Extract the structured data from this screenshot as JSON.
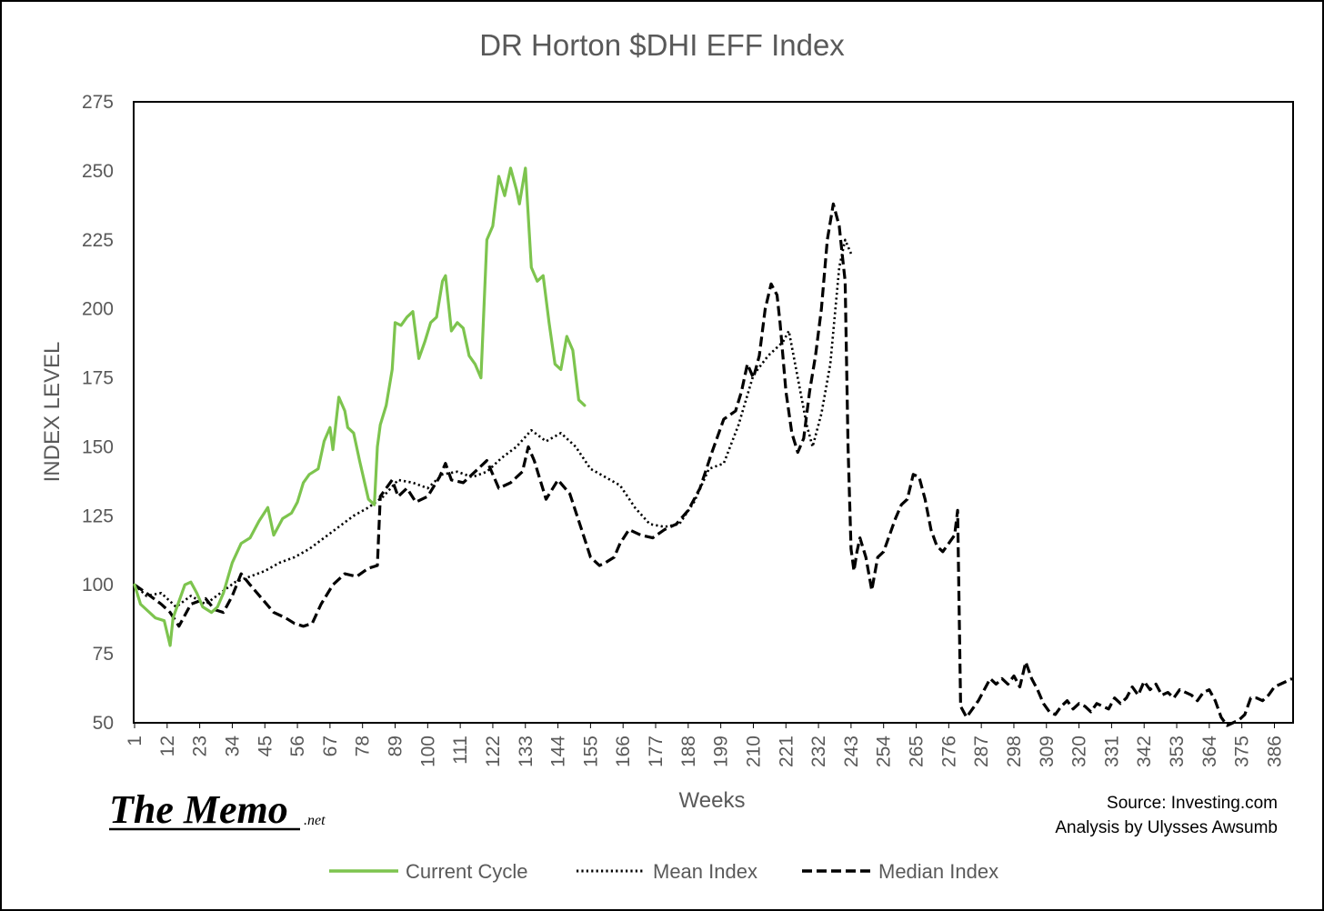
{
  "chart_data": {
    "type": "line",
    "title": "DR Horton $DHI EFF Index",
    "xlabel": "Weeks",
    "ylabel": "INDEX LEVEL",
    "xlim": [
      1,
      392
    ],
    "ylim": [
      50,
      275
    ],
    "y_ticks": [
      50,
      75,
      100,
      125,
      150,
      175,
      200,
      225,
      250,
      275
    ],
    "x_ticks": [
      1,
      12,
      23,
      34,
      45,
      56,
      67,
      78,
      89,
      100,
      111,
      122,
      133,
      144,
      155,
      166,
      177,
      188,
      199,
      210,
      221,
      232,
      243,
      254,
      265,
      276,
      287,
      298,
      309,
      320,
      331,
      342,
      353,
      364,
      375,
      386
    ],
    "grid": false,
    "legend": "bottom",
    "series": [
      {
        "name": "Current Cycle",
        "color": "#7DC44E",
        "style": "solid",
        "x": [
          1,
          3,
          5,
          8,
          11,
          13,
          14,
          16,
          18,
          20,
          22,
          24,
          27,
          29,
          31,
          34,
          37,
          40,
          43,
          46,
          48,
          51,
          54,
          56,
          58,
          60,
          63,
          65,
          67,
          68,
          70,
          72,
          73,
          75,
          77,
          80,
          82,
          83,
          84,
          86,
          88,
          89,
          91,
          93,
          95,
          97,
          99,
          101,
          103,
          105,
          106,
          108,
          110,
          112,
          114,
          116,
          118,
          120,
          122,
          124,
          126,
          128,
          130,
          131,
          133,
          135,
          137,
          139,
          141,
          143,
          145,
          147,
          149,
          151,
          153
        ],
        "y": [
          100,
          93,
          91,
          88,
          87,
          78,
          88,
          94,
          100,
          101,
          97,
          92,
          90,
          92,
          97,
          108,
          115,
          117,
          123,
          128,
          118,
          124,
          126,
          130,
          137,
          140,
          142,
          152,
          157,
          149,
          168,
          163,
          157,
          155,
          145,
          131,
          129,
          150,
          158,
          165,
          178,
          195,
          194,
          197,
          199,
          182,
          188,
          195,
          197,
          210,
          212,
          192,
          195,
          193,
          183,
          180,
          175,
          225,
          230,
          248,
          241,
          251,
          243,
          238,
          251,
          215,
          210,
          212,
          195,
          180,
          178,
          190,
          185,
          167,
          165
        ]
      },
      {
        "name": "Mean Index",
        "color": "#000000",
        "style": "dotted",
        "x": [
          1,
          5,
          10,
          15,
          20,
          25,
          30,
          35,
          40,
          45,
          50,
          55,
          60,
          65,
          70,
          75,
          80,
          85,
          90,
          95,
          100,
          105,
          110,
          115,
          120,
          125,
          130,
          135,
          140,
          145,
          150,
          155,
          160,
          165,
          170,
          175,
          180,
          185,
          190,
          195,
          200,
          205,
          210,
          215,
          220,
          222,
          225,
          228,
          230,
          233,
          236,
          239,
          241,
          243
        ],
        "y": [
          100,
          96,
          97,
          92,
          96,
          93,
          97,
          101,
          103,
          105,
          108,
          110,
          113,
          117,
          121,
          125,
          128,
          132,
          138,
          137,
          135,
          140,
          141,
          139,
          141,
          146,
          150,
          156,
          152,
          155,
          150,
          142,
          139,
          136,
          128,
          122,
          121,
          122,
          130,
          142,
          144,
          158,
          176,
          183,
          188,
          192,
          175,
          158,
          150,
          162,
          180,
          215,
          225,
          220
        ]
      },
      {
        "name": "Median Index",
        "color": "#000000",
        "style": "dashed",
        "x": [
          1,
          5,
          10,
          13,
          16,
          20,
          25,
          28,
          31,
          34,
          37,
          40,
          44,
          48,
          52,
          55,
          58,
          61,
          64,
          68,
          72,
          76,
          80,
          83,
          84,
          86,
          88,
          90,
          93,
          96,
          100,
          104,
          106,
          108,
          112,
          116,
          120,
          124,
          128,
          132,
          134,
          136,
          140,
          144,
          148,
          152,
          155,
          158,
          160,
          163,
          165,
          168,
          172,
          176,
          180,
          184,
          188,
          192,
          196,
          200,
          204,
          206,
          208,
          210,
          212,
          214,
          216,
          218,
          219,
          221,
          223,
          225,
          227,
          229,
          231,
          233,
          235,
          237,
          239,
          240,
          241,
          242,
          243,
          244,
          245,
          246,
          248,
          250,
          252,
          254,
          256,
          258,
          260,
          262,
          264,
          266,
          268,
          270,
          272,
          274,
          276,
          278,
          279,
          280,
          282,
          284,
          286,
          288,
          290,
          292,
          294,
          296,
          298,
          300,
          302,
          304,
          306,
          308,
          310,
          312,
          314,
          316,
          318,
          320,
          322,
          324,
          326,
          328,
          330,
          332,
          334,
          336,
          338,
          340,
          342,
          344,
          346,
          348,
          350,
          352,
          354,
          356,
          358,
          360,
          362,
          364,
          366,
          368,
          370,
          372,
          374,
          376,
          378,
          380,
          382,
          384,
          386,
          388,
          390,
          392
        ],
        "y": [
          100,
          97,
          93,
          90,
          85,
          93,
          95,
          91,
          90,
          96,
          104,
          100,
          95,
          90,
          88,
          86,
          85,
          86,
          93,
          100,
          104,
          103,
          106,
          107,
          132,
          135,
          138,
          132,
          135,
          130,
          132,
          139,
          144,
          138,
          137,
          141,
          145,
          135,
          137,
          141,
          150,
          145,
          131,
          138,
          133,
          120,
          110,
          107,
          108,
          110,
          115,
          120,
          118,
          117,
          120,
          122,
          127,
          135,
          148,
          160,
          163,
          170,
          180,
          175,
          183,
          200,
          209,
          205,
          195,
          170,
          155,
          148,
          153,
          170,
          183,
          200,
          225,
          238,
          230,
          220,
          210,
          150,
          113,
          105,
          112,
          117,
          110,
          98,
          110,
          112,
          118,
          124,
          129,
          131,
          140,
          139,
          131,
          120,
          114,
          112,
          115,
          118,
          127,
          56,
          52,
          55,
          58,
          62,
          66,
          64,
          66,
          64,
          67,
          63,
          72,
          66,
          62,
          57,
          54,
          53,
          56,
          58,
          55,
          57,
          56,
          54,
          57,
          56,
          55,
          59,
          57,
          59,
          63,
          60,
          65,
          62,
          64,
          60,
          61,
          59,
          62,
          61,
          60,
          58,
          61,
          62,
          58,
          52,
          49,
          50,
          51,
          53,
          59,
          59,
          58,
          60,
          63,
          64,
          65,
          66
        ]
      }
    ]
  },
  "source": {
    "line1": "Source: Investing.com",
    "line2": "Analysis by Ulysses Awsumb"
  },
  "logo": {
    "main": "The Memo",
    "suffix": ".net"
  }
}
